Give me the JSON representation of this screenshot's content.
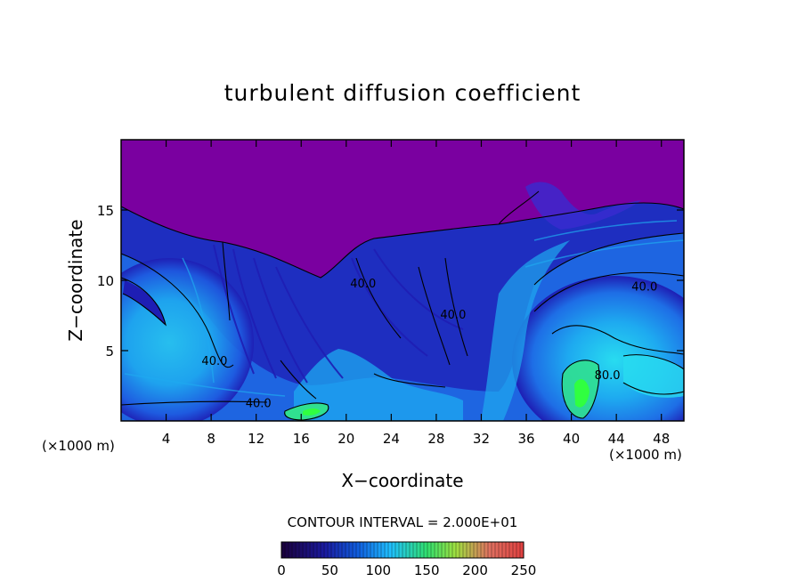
{
  "chart_data": {
    "type": "heatmap",
    "title": "turbulent diffusion coefficient",
    "xlabel": "X−coordinate",
    "ylabel": "Z−coordinate",
    "x_unit_left": "(×1000 m)",
    "x_unit_right": "(×1000 m)",
    "xlim": [
      0,
      50
    ],
    "ylim": [
      0,
      20
    ],
    "x_ticks": [
      4,
      8,
      12,
      16,
      20,
      24,
      28,
      32,
      36,
      40,
      44,
      48
    ],
    "y_ticks": [
      5,
      10,
      15
    ],
    "contour_interval_text": "CONTOUR INTERVAL = 2.000E+01",
    "contour_labels": [
      {
        "text": "40.0",
        "x": 46.5,
        "y": 9.6
      },
      {
        "text": "40.0",
        "x": 29.5,
        "y": 7.6
      },
      {
        "text": "40.0",
        "x": 21.5,
        "y": 9.8
      },
      {
        "text": "40.0",
        "x": 8.3,
        "y": 4.3
      },
      {
        "text": "40.0",
        "x": 12.2,
        "y": 1.3
      },
      {
        "text": "80.0",
        "x": 43.2,
        "y": 3.3
      }
    ],
    "colorbar": {
      "range": [
        0,
        250
      ],
      "tick_labels": [
        "0",
        "50",
        "100",
        "150",
        "200",
        "250"
      ],
      "colors": [
        "#1a003a",
        "#1a1aa0",
        "#1060e0",
        "#20c0ff",
        "#30e070",
        "#a0e040",
        "#e07060",
        "#e04040"
      ]
    },
    "field_colors": {
      "background": "#7a00a0",
      "dark_blue": "#1e1eb4",
      "blue": "#1e6ee6",
      "light_blue": "#1eaaf0",
      "cyan": "#28dcf0",
      "green": "#30e090",
      "bright_green": "#30ff40",
      "contour": "#000000"
    }
  }
}
